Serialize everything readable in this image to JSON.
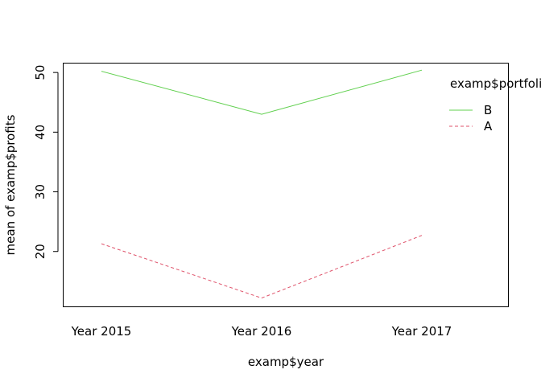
{
  "chart_data": {
    "type": "line",
    "title": "",
    "xlabel": "examp$year",
    "ylabel": "mean of  examp$profits",
    "categories": [
      "Year 2015",
      "Year 2016",
      "Year 2017"
    ],
    "yticks": [
      20,
      30,
      40,
      50
    ],
    "ylim": [
      10.8,
      51.5
    ],
    "grid": false,
    "legend": {
      "title": "examp$portfolio",
      "position": "top-right",
      "entries": [
        "B",
        "A"
      ]
    },
    "series": [
      {
        "name": "B",
        "values": [
          50.2,
          43.0,
          50.4
        ],
        "color": "#61D04F",
        "line_style": "solid"
      },
      {
        "name": "A",
        "values": [
          21.3,
          12.2,
          22.7
        ],
        "color": "#DF536B",
        "line_style": "dashed"
      }
    ]
  }
}
